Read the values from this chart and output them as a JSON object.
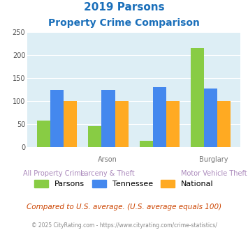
{
  "title_line1": "2019 Parsons",
  "title_line2": "Property Crime Comparison",
  "title_color": "#1a6fba",
  "parsons_values": [
    58,
    46,
    14,
    215
  ],
  "tennessee_values": [
    125,
    125,
    130,
    128
  ],
  "national_values": [
    100,
    100,
    100,
    100
  ],
  "parsons_color": "#88cc44",
  "tennessee_color": "#4488ee",
  "national_color": "#ffaa22",
  "ylim": [
    0,
    250
  ],
  "yticks": [
    0,
    50,
    100,
    150,
    200,
    250
  ],
  "plot_bg": "#ddeef5",
  "legend_labels": [
    "Parsons",
    "Tennessee",
    "National"
  ],
  "top_xlabels": [
    "",
    "Arson",
    "",
    "Burglary"
  ],
  "bottom_xlabels": [
    "All Property Crime",
    "Larceny & Theft",
    "",
    "Motor Vehicle Theft"
  ],
  "top_xlabel_color": "#777777",
  "bottom_xlabel_color": "#aa88bb",
  "footer_text": "Compared to U.S. average. (U.S. average equals 100)",
  "footer_color": "#cc4400",
  "copyright_text": "© 2025 CityRating.com - https://www.cityrating.com/crime-statistics/",
  "copyright_color": "#888888"
}
